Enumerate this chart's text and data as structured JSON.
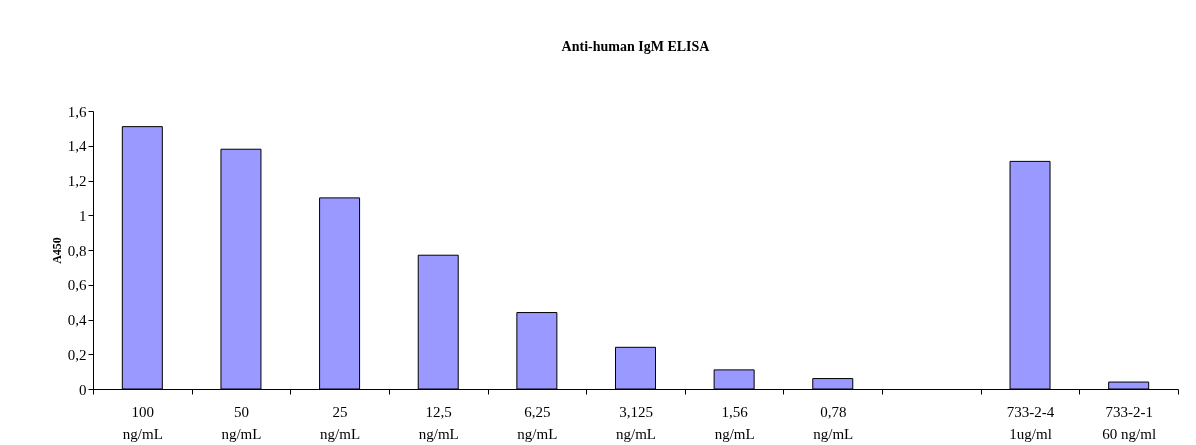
{
  "chart_data": {
    "type": "bar",
    "title": "Anti-human IgM ELISA",
    "ylabel": "A450",
    "categories": [
      "100\nng/mL",
      "50\nng/mL",
      "25\nng/mL",
      "12,5\nng/mL",
      "6,25\nng/mL",
      "3,125\nng/mL",
      "1,56\nng/mL",
      "0,78\nng/mL",
      null,
      "733-2-4\n1ug/ml",
      "733-2-1\n60 ng/ml"
    ],
    "values": [
      1.51,
      1.38,
      1.1,
      0.77,
      0.44,
      0.24,
      0.11,
      0.06,
      null,
      1.31,
      0.04
    ],
    "color": "#9999ff",
    "ylim": [
      0,
      1.6
    ],
    "yticks": [
      0,
      {
        "value": 0.2,
        "label": "0,2"
      },
      {
        "value": 0.4,
        "label": "0,4"
      },
      {
        "value": 0.6,
        "label": "0,6"
      },
      {
        "value": 0.8,
        "label": "0,8"
      },
      1,
      {
        "value": 1.2,
        "label": "1,2"
      },
      {
        "value": 1.4,
        "label": "1,4"
      },
      {
        "value": 1.6,
        "label": "1,6"
      }
    ],
    "grid": false
  }
}
